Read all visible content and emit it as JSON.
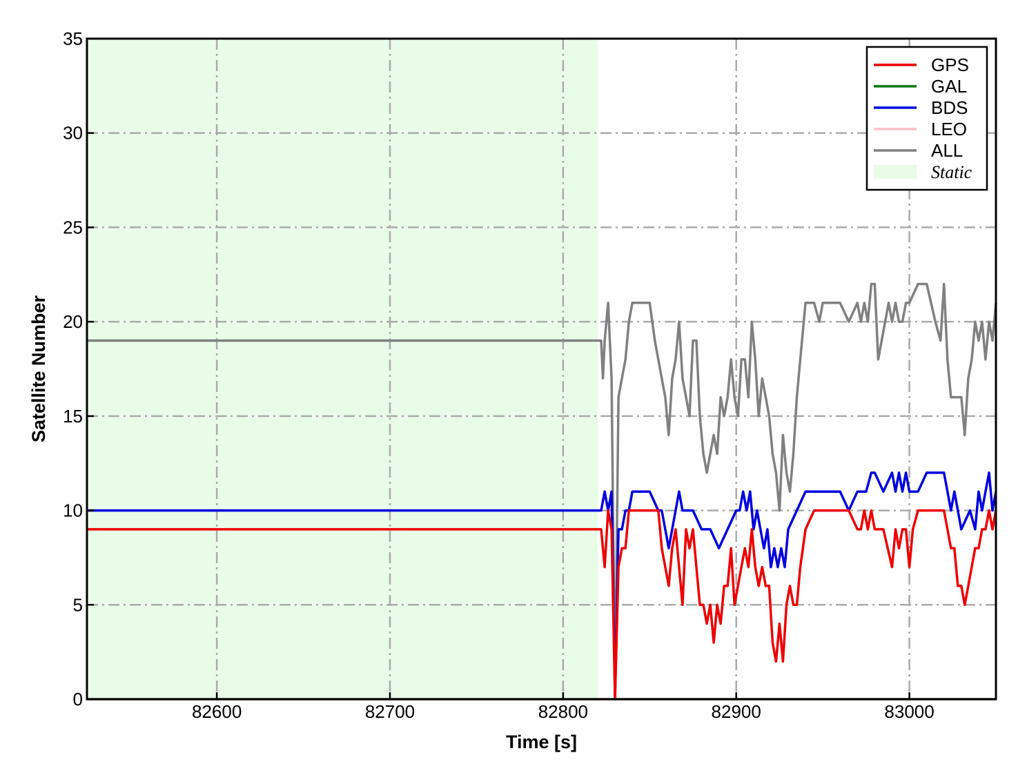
{
  "chart_data": {
    "type": "line",
    "title": "",
    "xlabel": "Time [s]",
    "ylabel": "Satellite Number",
    "xlim": [
      82525,
      83050
    ],
    "ylim": [
      0,
      35
    ],
    "xticks": [
      82600,
      82700,
      82800,
      82900,
      83000
    ],
    "yticks": [
      0,
      5,
      10,
      15,
      20,
      25,
      30,
      35
    ],
    "grid": true,
    "legend_position": "top-right",
    "colors": {
      "GPS": "#ee0000",
      "GAL": "#007700",
      "BDS": "#0000dd",
      "LEO": "#ffc0cb",
      "ALL": "#808080",
      "Static": "#e8fce8"
    },
    "static_region": {
      "label": "Static",
      "x_start": 82525,
      "x_end": 82820
    },
    "series": [
      {
        "name": "GPS",
        "x": [
          82525,
          82822,
          82824,
          82826,
          82828,
          82830,
          82832,
          82834,
          82836,
          82838,
          82840,
          82845,
          82850,
          82855,
          82857,
          82859,
          82861,
          82863,
          82865,
          82867,
          82869,
          82871,
          82873,
          82875,
          82877,
          82879,
          82881,
          82883,
          82885,
          82887,
          82889,
          82891,
          82893,
          82895,
          82897,
          82899,
          82901,
          82903,
          82905,
          82907,
          82909,
          82911,
          82913,
          82915,
          82917,
          82919,
          82921,
          82923,
          82925,
          82927,
          82929,
          82931,
          82933,
          82935,
          82937,
          82940,
          82945,
          82950,
          82955,
          82960,
          82965,
          82970,
          82972,
          82974,
          82976,
          82978,
          82980,
          82985,
          82990,
          82992,
          82994,
          82996,
          82998,
          83000,
          83002,
          83005,
          83010,
          83015,
          83020,
          83022,
          83024,
          83026,
          83028,
          83030,
          83032,
          83034,
          83036,
          83038,
          83040,
          83042,
          83044,
          83046,
          83048,
          83050
        ],
        "values": [
          9,
          9,
          7,
          10,
          9,
          0,
          7,
          8,
          8,
          10,
          10,
          10,
          10,
          10,
          8,
          7,
          6,
          8,
          9,
          7,
          5,
          9,
          8,
          9,
          7,
          5,
          5,
          4,
          5,
          3,
          5,
          4,
          6,
          6,
          8,
          5,
          6,
          7,
          8,
          7,
          9,
          7,
          6,
          7,
          6,
          6,
          3,
          2,
          4,
          2,
          5,
          6,
          5,
          5,
          7,
          9,
          10,
          10,
          10,
          10,
          10,
          9,
          9,
          10,
          9,
          10,
          9,
          9,
          7,
          9,
          8,
          9,
          9,
          7,
          9,
          10,
          10,
          10,
          10,
          9,
          8,
          8,
          6,
          6,
          5,
          6,
          7,
          8,
          8,
          9,
          9,
          10,
          9,
          10
        ]
      },
      {
        "name": "GAL",
        "x": [
          82525,
          82822,
          82826,
          82830,
          82834,
          82838,
          82850,
          82860,
          82870,
          82880,
          82890,
          82900,
          82910,
          82920,
          82930,
          82940,
          82960,
          82980,
          83000,
          83020,
          83040,
          83050
        ],
        "values": [
          0,
          0,
          0,
          0,
          0,
          0,
          0,
          0,
          0,
          0,
          0,
          0,
          0,
          0,
          0,
          0,
          0,
          0,
          0,
          0,
          0,
          0
        ]
      },
      {
        "name": "BDS",
        "x": [
          82525,
          82822,
          82824,
          82826,
          82828,
          82830,
          82832,
          82834,
          82836,
          82838,
          82840,
          82845,
          82850,
          82855,
          82857,
          82859,
          82861,
          82863,
          82865,
          82867,
          82869,
          82871,
          82875,
          82880,
          82885,
          82890,
          82895,
          82900,
          82902,
          82904,
          82906,
          82908,
          82910,
          82912,
          82914,
          82916,
          82918,
          82920,
          82922,
          82924,
          82926,
          82928,
          82930,
          82935,
          82940,
          82945,
          82950,
          82955,
          82960,
          82965,
          82970,
          82975,
          82978,
          82980,
          82985,
          82990,
          82992,
          82994,
          82996,
          82998,
          83000,
          83005,
          83010,
          83015,
          83020,
          83022,
          83024,
          83026,
          83030,
          83035,
          83038,
          83040,
          83042,
          83044,
          83046,
          83048,
          83050
        ],
        "values": [
          10,
          10,
          11,
          10,
          11,
          0,
          9,
          9,
          10,
          10,
          11,
          11,
          11,
          10,
          10,
          9,
          8,
          9,
          10,
          11,
          10,
          10,
          10,
          9,
          9,
          8,
          9,
          10,
          10,
          11,
          10,
          11,
          9,
          10,
          9,
          8,
          9,
          7,
          8,
          7,
          8,
          7,
          9,
          10,
          11,
          11,
          11,
          11,
          11,
          10,
          11,
          11,
          12,
          12,
          11,
          12,
          11,
          12,
          11,
          12,
          11,
          11,
          12,
          12,
          12,
          11,
          10,
          11,
          9,
          10,
          9,
          11,
          10,
          11,
          12,
          10,
          11
        ]
      },
      {
        "name": "LEO",
        "x": [
          82525,
          82822,
          82826,
          82830,
          82834,
          82838,
          82850,
          82860,
          82870,
          82880,
          82890,
          82900,
          82910,
          82920,
          82930,
          82940,
          82960,
          82980,
          83000,
          83020,
          83040,
          83050
        ],
        "values": [
          0,
          0,
          0,
          0,
          0,
          0,
          0,
          0,
          0,
          0,
          0,
          0,
          0,
          0,
          0,
          0,
          0,
          0,
          0,
          0,
          0,
          0
        ]
      },
      {
        "name": "ALL",
        "x": [
          82525,
          82822,
          82823,
          82824,
          82826,
          82828,
          82830,
          82832,
          82834,
          82836,
          82838,
          82840,
          82845,
          82850,
          82853,
          82855,
          82857,
          82859,
          82861,
          82863,
          82865,
          82867,
          82869,
          82871,
          82873,
          82875,
          82877,
          82879,
          82881,
          82883,
          82885,
          82887,
          82889,
          82891,
          82893,
          82895,
          82897,
          82899,
          82901,
          82903,
          82905,
          82907,
          82909,
          82911,
          82913,
          82915,
          82917,
          82919,
          82921,
          82923,
          82925,
          82927,
          82929,
          82931,
          82933,
          82935,
          82937,
          82940,
          82945,
          82948,
          82950,
          82955,
          82960,
          82965,
          82970,
          82972,
          82974,
          82976,
          82978,
          82980,
          82982,
          82984,
          82986,
          82988,
          82990,
          82992,
          82994,
          82996,
          82998,
          83000,
          83005,
          83010,
          83015,
          83018,
          83020,
          83022,
          83024,
          83026,
          83028,
          83030,
          83032,
          83034,
          83036,
          83038,
          83040,
          83042,
          83044,
          83046,
          83048,
          83050
        ],
        "values": [
          19,
          19,
          17,
          19,
          21,
          17,
          0,
          16,
          17,
          18,
          20,
          21,
          21,
          21,
          19,
          18,
          17,
          16,
          14,
          17,
          18,
          20,
          17,
          16,
          15,
          19,
          19,
          15,
          13,
          12,
          13,
          14,
          13,
          16,
          15,
          16,
          18,
          16,
          15,
          18,
          18,
          16,
          20,
          18,
          15,
          17,
          16,
          15,
          13,
          12,
          10,
          14,
          12,
          11,
          13,
          16,
          18,
          21,
          21,
          20,
          21,
          21,
          21,
          20,
          21,
          20,
          21,
          20,
          22,
          22,
          18,
          19,
          20,
          21,
          20,
          21,
          20,
          20,
          21,
          21,
          22,
          22,
          20,
          19,
          22,
          18,
          16,
          16,
          16,
          16,
          14,
          17,
          18,
          20,
          19,
          20,
          18,
          20,
          19,
          21
        ]
      }
    ]
  }
}
